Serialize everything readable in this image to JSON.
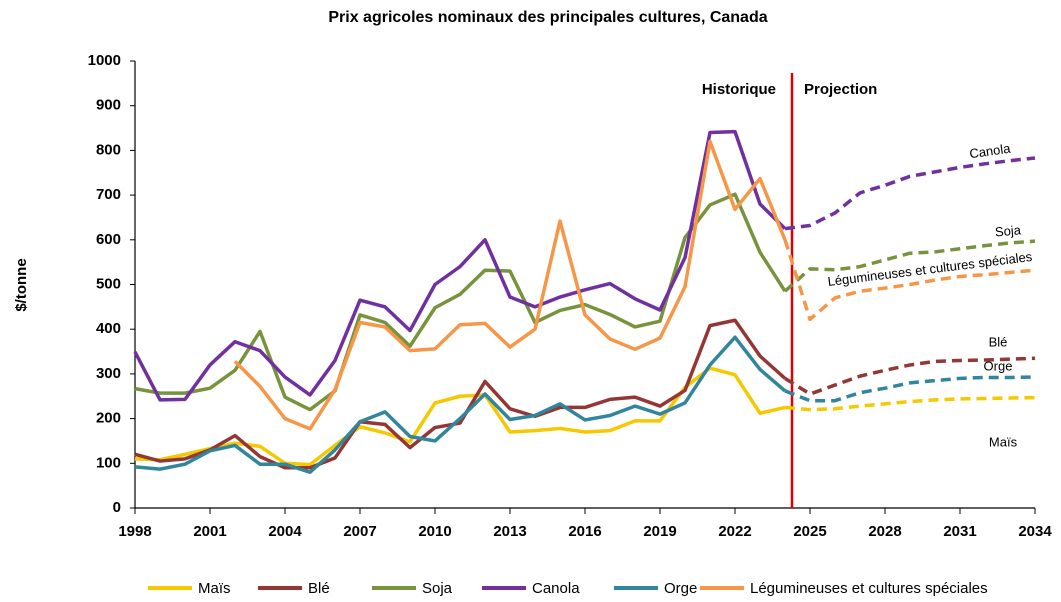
{
  "chart_data": {
    "type": "line",
    "title": "Prix agricoles nominaux des principales cultures,  Canada",
    "y_label": "$/tonne",
    "x": [
      1998,
      1999,
      2000,
      2001,
      2002,
      2003,
      2004,
      2005,
      2006,
      2007,
      2008,
      2009,
      2010,
      2011,
      2012,
      2013,
      2014,
      2015,
      2016,
      2017,
      2018,
      2019,
      2020,
      2021,
      2022,
      2023,
      2024,
      2025,
      2026,
      2027,
      2028,
      2029,
      2030,
      2031,
      2032,
      2033,
      2034
    ],
    "xlim": [
      1998,
      2034
    ],
    "xticks": [
      1998,
      2001,
      2004,
      2007,
      2010,
      2013,
      2016,
      2019,
      2022,
      2025,
      2028,
      2031,
      2034
    ],
    "ylim": [
      0,
      1000
    ],
    "yticks": [
      0,
      100,
      200,
      300,
      400,
      500,
      600,
      700,
      800,
      900,
      1000
    ],
    "projection_start": 2024,
    "divider_color": "#e00000",
    "period_labels": [
      "Historique",
      "Projection"
    ],
    "annotations": [
      "Canola",
      "Soja",
      "Légumineuses et cultures spéciales",
      "Blé",
      "Orge",
      "Maïs"
    ],
    "grid": false,
    "legend": "bottom",
    "series": [
      {
        "name": "Maïs",
        "color": "#f5c800",
        "values": [
          110,
          108,
          120,
          133,
          145,
          138,
          100,
          97,
          140,
          182,
          168,
          148,
          235,
          250,
          253,
          170,
          173,
          178,
          170,
          173,
          195,
          195,
          270,
          313,
          298,
          212,
          225,
          220,
          222,
          228,
          233,
          238,
          242,
          244,
          245,
          246,
          247
        ]
      },
      {
        "name": "Blé",
        "color": "#943634",
        "values": [
          120,
          105,
          110,
          130,
          162,
          115,
          90,
          90,
          112,
          193,
          187,
          135,
          180,
          190,
          283,
          222,
          205,
          225,
          225,
          243,
          248,
          228,
          263,
          408,
          420,
          340,
          290,
          255,
          275,
          295,
          308,
          320,
          328,
          330,
          331,
          333,
          335
        ]
      },
      {
        "name": "Soja",
        "color": "#77933c",
        "values": [
          267,
          257,
          257,
          268,
          308,
          395,
          248,
          220,
          262,
          432,
          415,
          362,
          448,
          478,
          532,
          530,
          415,
          442,
          455,
          433,
          405,
          418,
          605,
          678,
          702,
          572,
          485,
          535,
          533,
          540,
          555,
          570,
          573,
          580,
          587,
          593,
          597
        ]
      },
      {
        "name": "Canola",
        "color": "#7030a0",
        "values": [
          349,
          242,
          243,
          320,
          372,
          352,
          293,
          253,
          330,
          465,
          450,
          397,
          500,
          540,
          600,
          472,
          450,
          472,
          488,
          502,
          468,
          443,
          560,
          840,
          842,
          680,
          625,
          632,
          660,
          705,
          722,
          742,
          752,
          762,
          770,
          777,
          783
        ]
      },
      {
        "name": "Orge",
        "color": "#31859c",
        "values": [
          92,
          87,
          98,
          128,
          140,
          98,
          98,
          80,
          130,
          193,
          215,
          160,
          150,
          200,
          255,
          198,
          207,
          233,
          197,
          207,
          228,
          210,
          235,
          320,
          382,
          310,
          262,
          240,
          240,
          258,
          268,
          280,
          285,
          290,
          292,
          292,
          293
        ]
      },
      {
        "name": "Légumineuses et cultures spéciales",
        "color": "#f79646",
        "values": [
          null,
          null,
          null,
          null,
          328,
          272,
          200,
          177,
          265,
          415,
          405,
          352,
          356,
          410,
          413,
          360,
          400,
          642,
          432,
          378,
          355,
          380,
          495,
          820,
          668,
          737,
          600,
          422,
          470,
          485,
          492,
          500,
          510,
          518,
          522,
          527,
          532
        ]
      }
    ]
  }
}
